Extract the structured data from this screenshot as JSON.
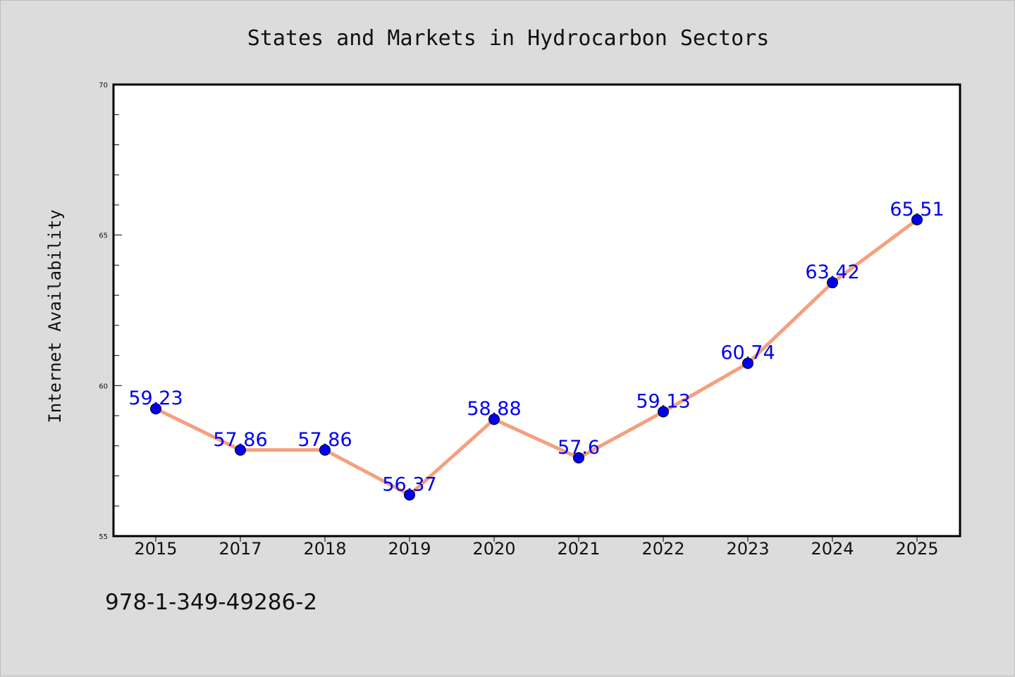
{
  "chart_data": {
    "type": "line",
    "title": "States and Markets in Hydrocarbon Sectors",
    "xlabel": "",
    "ylabel": "Internet Availability",
    "categories": [
      "2015",
      "2017",
      "2018",
      "2019",
      "2020",
      "2021",
      "2022",
      "2023",
      "2024",
      "2025"
    ],
    "series": [
      {
        "values": [
          59.23,
          57.86,
          57.86,
          56.37,
          58.88,
          57.6,
          59.13,
          60.74,
          63.42,
          65.51
        ],
        "labels": [
          "59.23",
          "57.86",
          "57.86",
          "56.37",
          "58.88",
          "57.6",
          "59.13",
          "60.74",
          "63.42",
          "65.51"
        ],
        "line_color": "#f4a07f",
        "marker_color": "#0000ee"
      }
    ],
    "ylim": [
      55,
      70
    ],
    "yticks": [
      "55",
      "60",
      "65",
      "70"
    ],
    "grid": false,
    "legend": "none"
  },
  "annotation": {
    "text": "978-1-349-49286-2"
  },
  "colors": {
    "background": "#dcdcdc",
    "plot_area": "#ffffff",
    "label_color": "#0000ee"
  }
}
